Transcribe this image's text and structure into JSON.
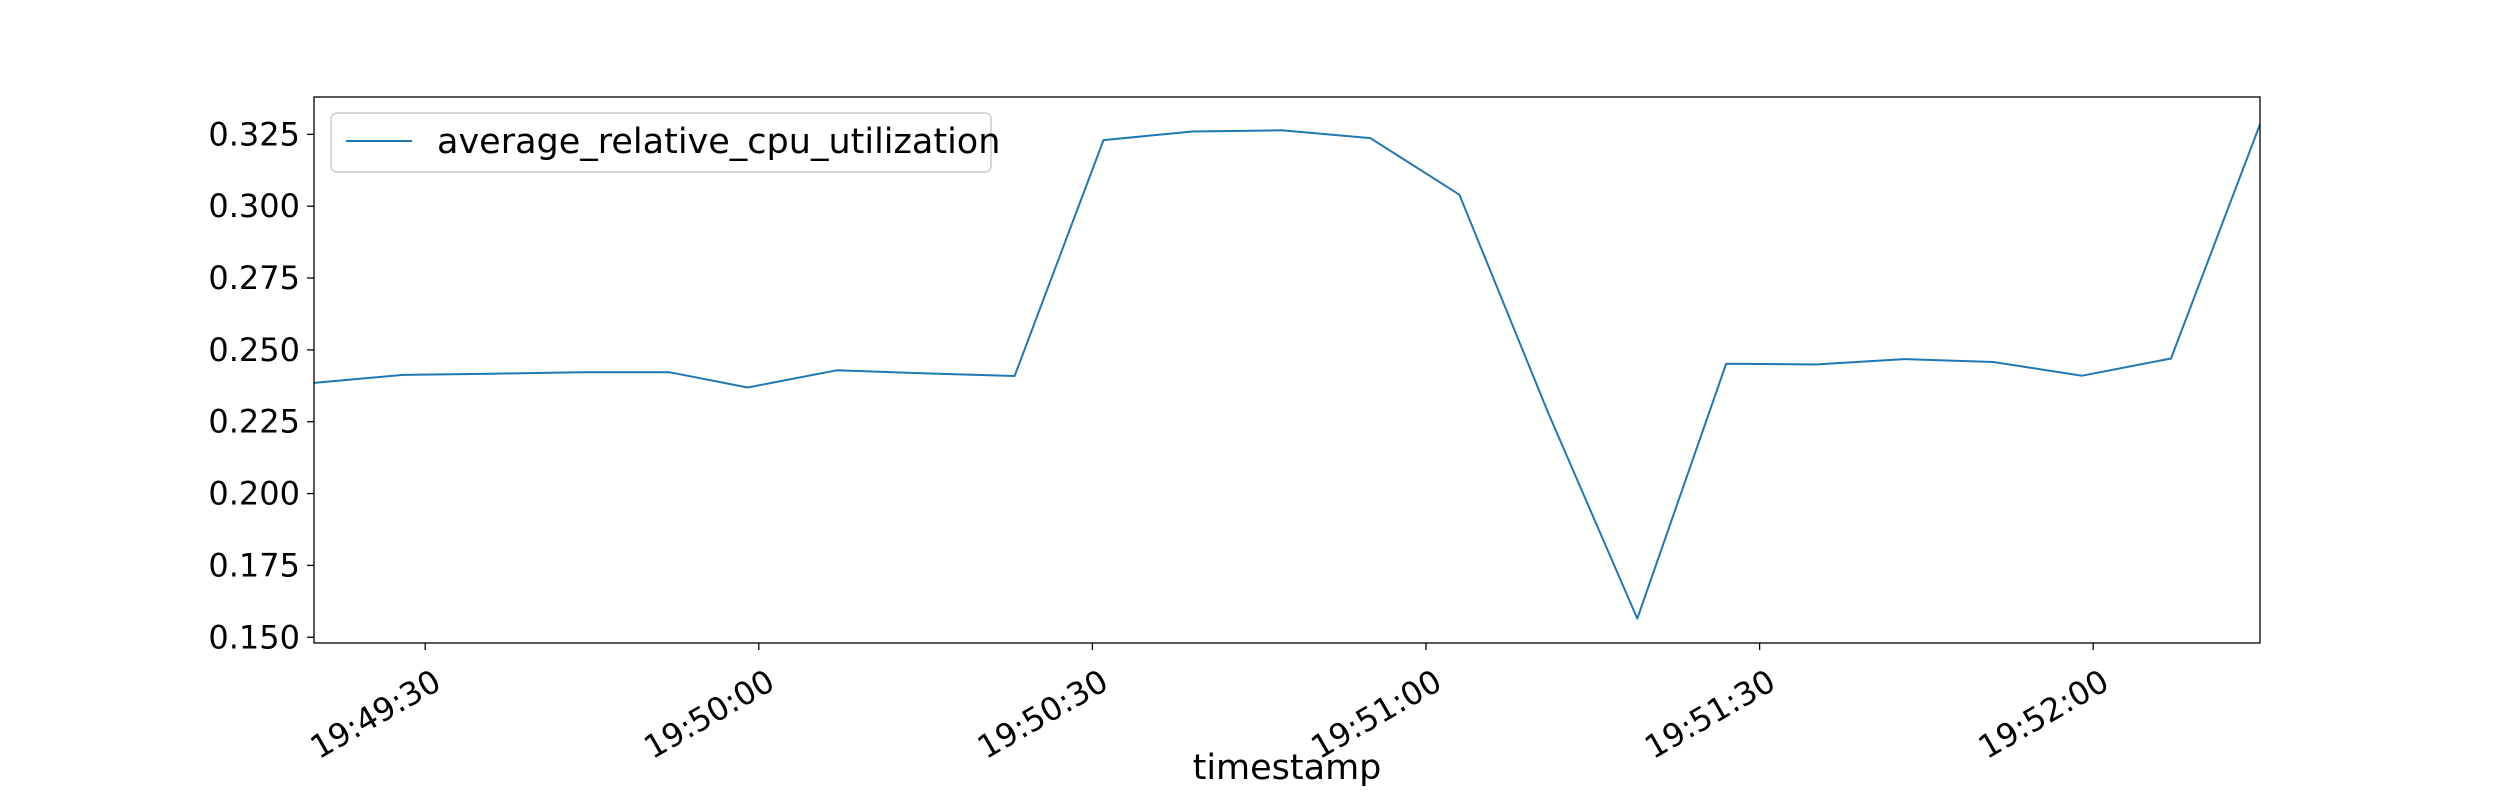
{
  "chart_data": {
    "type": "line",
    "title": "",
    "xlabel": "timestamp",
    "ylabel": "",
    "xlim": [
      "19:49:20",
      "19:52:15"
    ],
    "ylim": [
      0.148,
      0.338
    ],
    "x_ticks": [
      "19:49:30",
      "19:50:00",
      "19:50:30",
      "19:51:00",
      "19:51:30",
      "19:52:00"
    ],
    "y_ticks": [
      "0.150",
      "0.175",
      "0.200",
      "0.225",
      "0.250",
      "0.275",
      "0.300",
      "0.325"
    ],
    "grid": false,
    "legend_position": "top-left",
    "series": [
      {
        "name": "average_relative_cpu_utilization",
        "color": "#1f77b4",
        "x": [
          "19:49:20",
          "19:49:28",
          "19:49:36",
          "19:49:44",
          "19:49:52",
          "19:49:59",
          "19:50:07",
          "19:50:15",
          "19:50:23",
          "19:50:31",
          "19:50:39",
          "19:50:47",
          "19:50:55",
          "19:51:03",
          "19:51:11",
          "19:51:19",
          "19:51:27",
          "19:51:35",
          "19:51:43",
          "19:51:51",
          "19:51:59",
          "19:52:07",
          "19:52:15"
        ],
        "y": [
          0.2385,
          0.2413,
          0.2417,
          0.2422,
          0.2422,
          0.2369,
          0.2429,
          0.2418,
          0.2409,
          0.323,
          0.326,
          0.3264,
          0.3237,
          0.304,
          0.228,
          0.1565,
          0.2452,
          0.2449,
          0.2468,
          0.2458,
          0.241,
          0.247,
          0.3285
        ]
      }
    ]
  }
}
